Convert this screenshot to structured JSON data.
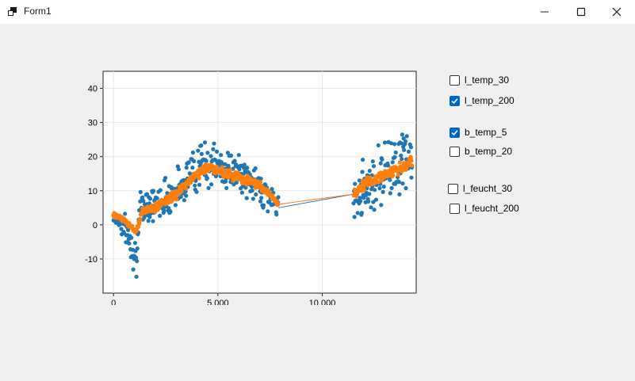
{
  "window": {
    "title": "Form1",
    "icon": "app-window-icon",
    "controls": [
      "minimize-icon",
      "maximize-icon",
      "close-icon"
    ]
  },
  "checkboxes": [
    {
      "label": "l_temp_30",
      "checked": false
    },
    {
      "label": "l_temp_200",
      "checked": true
    },
    {
      "label": "b_temp_5",
      "checked": true
    },
    {
      "label": "b_temp_20",
      "checked": false
    },
    {
      "label": "l_feucht_30",
      "checked": false
    },
    {
      "label": "l_feucht_200",
      "checked": false
    }
  ],
  "chart_data": {
    "type": "scatter",
    "xlim": [
      -500,
      14500
    ],
    "ylim": [
      -20,
      45
    ],
    "x_ticks": [
      0,
      5000,
      10000
    ],
    "x_tick_labels": [
      "0",
      "5.000",
      "10.000"
    ],
    "y_ticks": [
      -10,
      0,
      10,
      20,
      30,
      40
    ],
    "grid": true,
    "legend": "none",
    "segments": [
      [
        0,
        7900
      ],
      [
        11500,
        14300
      ]
    ],
    "series": [
      {
        "color": "#1f77b4",
        "x": [
          0,
          300,
          600,
          900,
          1100,
          1300,
          1600,
          2000,
          2500,
          3000,
          3500,
          4000,
          4500,
          5000,
          5500,
          6000,
          6500,
          7000,
          7500,
          7900,
          11500,
          12000,
          12500,
          13000,
          13500,
          14000,
          14300
        ],
        "y": [
          2,
          1,
          -2,
          -6,
          -9,
          4,
          7,
          6,
          8,
          10,
          14,
          17,
          18,
          17,
          16,
          15,
          13,
          11,
          8,
          5,
          9,
          11,
          13,
          16,
          18,
          20,
          19
        ],
        "spread": [
          3,
          4,
          6,
          8,
          8,
          9,
          8,
          7,
          8,
          8,
          9,
          10,
          10,
          9,
          8,
          7,
          7,
          7,
          6,
          4,
          10,
          11,
          12,
          13,
          14,
          13,
          11
        ]
      },
      {
        "color": "#ff7f0e",
        "x": [
          0,
          300,
          600,
          900,
          1100,
          1300,
          1600,
          2000,
          2500,
          3000,
          3500,
          4000,
          4500,
          5000,
          5500,
          6000,
          6500,
          7000,
          7500,
          7900,
          11500,
          12000,
          12500,
          13000,
          13500,
          14000,
          14300
        ],
        "y": [
          3,
          2,
          1,
          -1,
          -2,
          3,
          5,
          5,
          7,
          9,
          12,
          15,
          17,
          16,
          15,
          14,
          13,
          11,
          9,
          6,
          9,
          12,
          13,
          15,
          16,
          17,
          19
        ],
        "spread": [
          1,
          1,
          1,
          1,
          1,
          2,
          2,
          2,
          2,
          2,
          2,
          2,
          2,
          2,
          2,
          2,
          2,
          2,
          1,
          1,
          2,
          2,
          2,
          2,
          2,
          2,
          2
        ]
      }
    ]
  }
}
